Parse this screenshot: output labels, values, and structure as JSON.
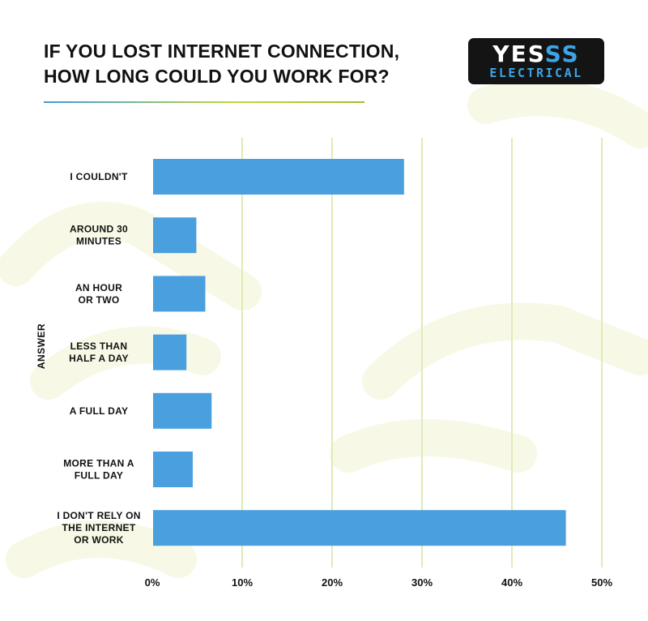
{
  "header": {
    "title_line1": "IF YOU LOST INTERNET CONNECTION,",
    "title_line2": "HOW LONG COULD YOU WORK FOR?"
  },
  "logo": {
    "part1": "YES",
    "part2": "SS",
    "tagline": "ELECTRICAL"
  },
  "colors": {
    "bar": "#4a9fdf",
    "gridline": "#dfebb8",
    "baseline": "#a8c93a",
    "text": "#111111"
  },
  "chart_data": {
    "type": "bar",
    "orientation": "horizontal",
    "title": "IF YOU LOST INTERNET CONNECTION, HOW LONG COULD YOU WORK FOR?",
    "ylabel": "ANSWER",
    "xlabel": "",
    "categories": [
      [
        "I COULDN'T"
      ],
      [
        "AROUND 30",
        "MINUTES"
      ],
      [
        "AN HOUR",
        "OR TWO"
      ],
      [
        "LESS THAN",
        "HALF A DAY"
      ],
      [
        "A FULL DAY"
      ],
      [
        "MORE THAN A",
        "FULL DAY"
      ],
      [
        "I DON'T RELY ON",
        "THE INTERNET",
        "OR WORK"
      ]
    ],
    "values": [
      28,
      4.9,
      5.9,
      3.8,
      6.6,
      4.5,
      46
    ],
    "xlim": [
      0,
      50
    ],
    "xticks": [
      0,
      10,
      20,
      30,
      40,
      50
    ],
    "tick_labels": [
      "0%",
      "10%",
      "20%",
      "30%",
      "40%",
      "50%"
    ],
    "grid": true,
    "legend": "none"
  }
}
